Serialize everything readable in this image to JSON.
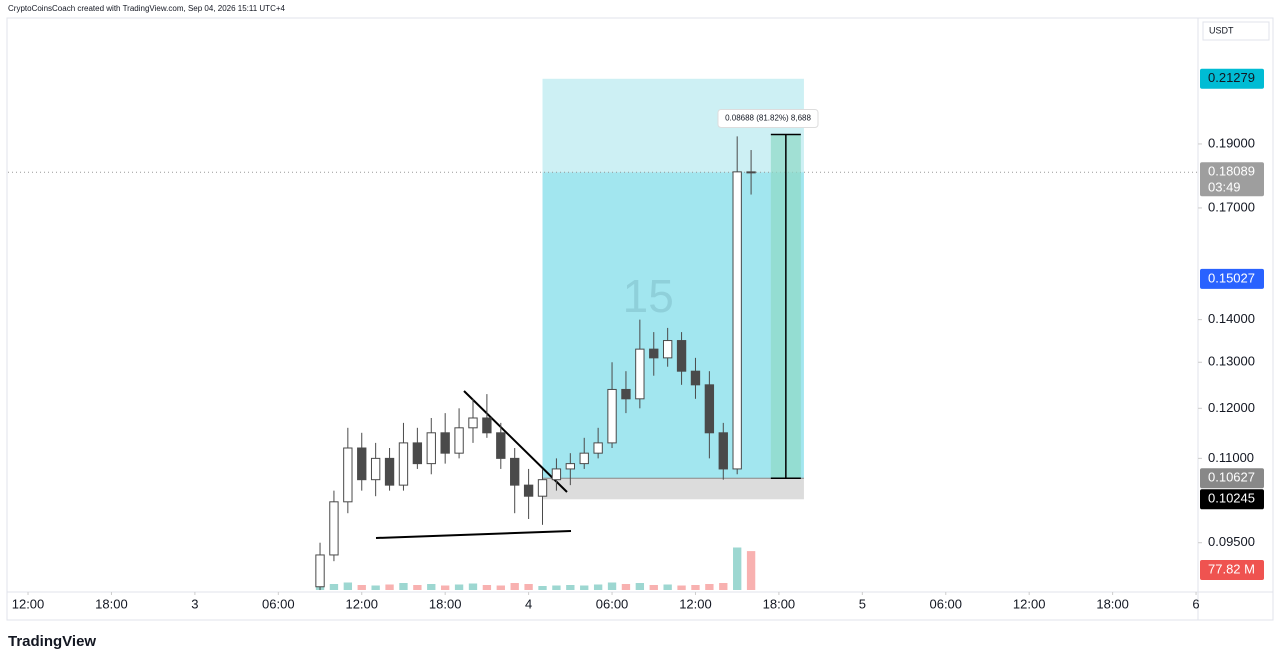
{
  "header": "CryptoCoinsCoach created with TradingView.com, Sep 04, 2026 15:11 UTC+4",
  "logo": "TradingView",
  "chart_data": {
    "type": "candlestick",
    "currency": "USDT",
    "watermark": "15",
    "log_scale": true,
    "ylim": [
      0.0872,
      0.2365
    ],
    "yticks": [
      {
        "value": 0.19,
        "label": "0.19000"
      },
      {
        "value": 0.17,
        "label": "0.17000"
      },
      {
        "value": 0.14,
        "label": "0.14000"
      },
      {
        "value": 0.13,
        "label": "0.13000"
      },
      {
        "value": 0.12,
        "label": "0.12000"
      },
      {
        "value": 0.11,
        "label": "0.11000"
      },
      {
        "value": 0.095,
        "label": "0.09500"
      }
    ],
    "xlim": [
      -1.44,
      84.14
    ],
    "xticks": [
      {
        "value": 0,
        "label": "12:00"
      },
      {
        "value": 6,
        "label": "18:00"
      },
      {
        "value": 12,
        "label": "3"
      },
      {
        "value": 18,
        "label": "06:00"
      },
      {
        "value": 24,
        "label": "12:00"
      },
      {
        "value": 30,
        "label": "18:00"
      },
      {
        "value": 36,
        "label": "4"
      },
      {
        "value": 42,
        "label": "06:00"
      },
      {
        "value": 48,
        "label": "12:00"
      },
      {
        "value": 54,
        "label": "18:00"
      },
      {
        "value": 60,
        "label": "5"
      },
      {
        "value": 66,
        "label": "06:00"
      },
      {
        "value": 72,
        "label": "12:00"
      },
      {
        "value": 78,
        "label": "18:00"
      },
      {
        "value": 84,
        "label": "6"
      }
    ],
    "candle_color": "#4a4a4a",
    "candles": [
      [
        21,
        0.088,
        0.095,
        0.0875,
        0.093
      ],
      [
        22,
        0.093,
        0.104,
        0.092,
        0.102
      ],
      [
        23,
        0.102,
        0.116,
        0.1,
        0.112
      ],
      [
        24,
        0.112,
        0.115,
        0.104,
        0.106
      ],
      [
        25,
        0.106,
        0.113,
        0.103,
        0.11
      ],
      [
        26,
        0.11,
        0.112,
        0.104,
        0.105
      ],
      [
        27,
        0.105,
        0.117,
        0.104,
        0.113
      ],
      [
        28,
        0.113,
        0.116,
        0.108,
        0.109
      ],
      [
        29,
        0.109,
        0.118,
        0.107,
        0.115
      ],
      [
        30,
        0.115,
        0.119,
        0.109,
        0.111
      ],
      [
        31,
        0.111,
        0.12,
        0.11,
        0.116
      ],
      [
        32,
        0.116,
        0.122,
        0.113,
        0.118
      ],
      [
        33,
        0.118,
        0.123,
        0.114,
        0.115
      ],
      [
        34,
        0.115,
        0.117,
        0.108,
        0.11
      ],
      [
        35,
        0.11,
        0.112,
        0.1,
        0.105
      ],
      [
        36,
        0.105,
        0.108,
        0.099,
        0.103
      ],
      [
        37,
        0.103,
        0.108,
        0.098,
        0.106
      ],
      [
        38,
        0.106,
        0.11,
        0.104,
        0.108
      ],
      [
        39,
        0.108,
        0.111,
        0.105,
        0.109
      ],
      [
        40,
        0.109,
        0.114,
        0.108,
        0.111
      ],
      [
        41,
        0.111,
        0.116,
        0.11,
        0.113
      ],
      [
        42,
        0.113,
        0.13,
        0.112,
        0.124
      ],
      [
        43,
        0.124,
        0.128,
        0.119,
        0.122
      ],
      [
        44,
        0.122,
        0.14,
        0.12,
        0.133
      ],
      [
        45,
        0.133,
        0.137,
        0.127,
        0.131
      ],
      [
        46,
        0.131,
        0.138,
        0.129,
        0.135
      ],
      [
        47,
        0.135,
        0.137,
        0.125,
        0.128
      ],
      [
        48,
        0.128,
        0.131,
        0.122,
        0.125
      ],
      [
        49,
        0.125,
        0.128,
        0.11,
        0.115
      ],
      [
        50,
        0.115,
        0.117,
        0.106,
        0.108
      ],
      [
        51,
        0.108,
        0.1925,
        0.107,
        0.181
      ],
      [
        52,
        0.181,
        0.188,
        0.174,
        0.1809
      ]
    ],
    "volume_ylim": [
      0,
      100
    ],
    "volumes": [
      8,
      12,
      15,
      10,
      9,
      11,
      14,
      10,
      12,
      9,
      11,
      13,
      10,
      9,
      14,
      12,
      8,
      9,
      10,
      9,
      11,
      15,
      12,
      14,
      10,
      11,
      9,
      10,
      12,
      14,
      85,
      77.82
    ],
    "volume_up_color": "#26a69a",
    "volume_down_color": "#ef5350",
    "position": {
      "start": 37,
      "end": 55.8,
      "target": 0.21279,
      "entry": 0.10627,
      "stop": 0.10245
    },
    "measure": {
      "x": 54.5,
      "from": 0.10627,
      "to": 0.19315,
      "label": "0.08688 (81.82%) 8,688"
    },
    "price_tags": [
      {
        "value": 0.21279,
        "label": "0.21279",
        "color": "#00bcd4"
      },
      {
        "value": 0.18089,
        "label": "0.18089",
        "sub": "03:49",
        "color": "#9e9e9e"
      },
      {
        "value": 0.15027,
        "label": "0.15027",
        "color": "#2962ff"
      },
      {
        "value": 0.10627,
        "label": "0.10627",
        "color": "#888888"
      },
      {
        "value": 0.10245,
        "label": "0.10245",
        "color": "#000000"
      }
    ],
    "volume_tag": {
      "value": 77.82,
      "label": "77.82 M",
      "color": "#ef5350"
    }
  }
}
